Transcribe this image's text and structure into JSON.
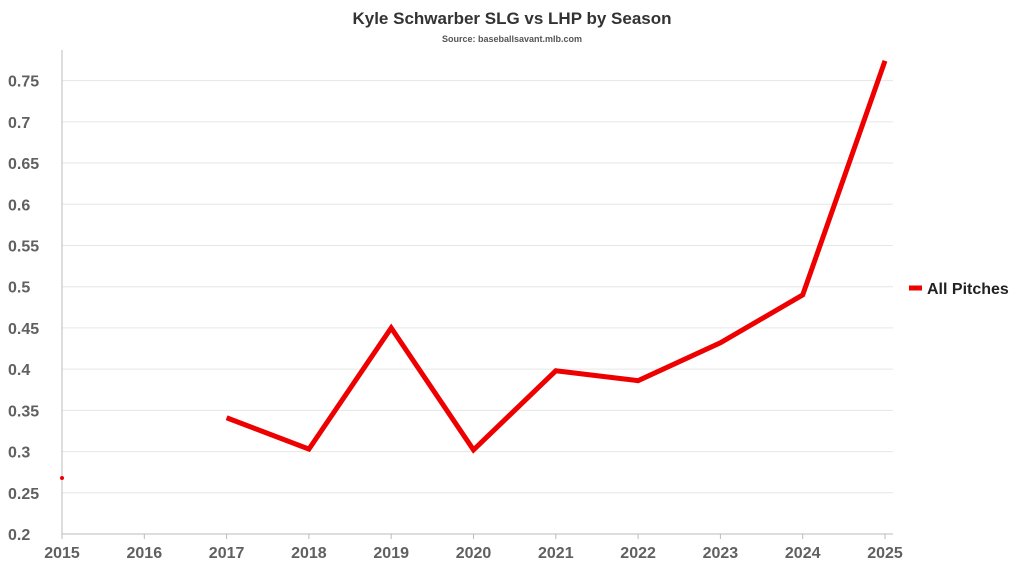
{
  "chart_data": {
    "type": "line",
    "title": "Kyle Schwarber SLG vs LHP by Season",
    "subtitle": "Source: baseballsavant.mlb.com",
    "xlabel": "",
    "ylabel": "",
    "x": [
      "2015",
      "2016",
      "2017",
      "2018",
      "2019",
      "2020",
      "2021",
      "2022",
      "2023",
      "2024",
      "2025"
    ],
    "y_ticks": [
      "0.2",
      "0.25",
      "0.3",
      "0.35",
      "0.4",
      "0.45",
      "0.5",
      "0.55",
      "0.6",
      "0.65",
      "0.7",
      "0.75"
    ],
    "ylim": [
      0.2,
      0.775
    ],
    "grid": true,
    "legend_position": "right",
    "series": [
      {
        "name": "All Pitches",
        "color": "#ee0000",
        "values": [
          0.268,
          null,
          0.341,
          0.303,
          0.45,
          0.302,
          0.398,
          0.386,
          0.432,
          0.49,
          0.774
        ]
      }
    ]
  }
}
